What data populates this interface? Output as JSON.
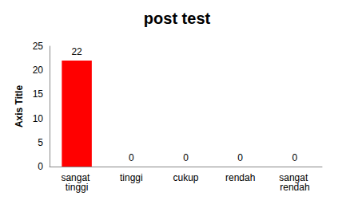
{
  "chart_data": {
    "type": "bar",
    "title": "post test",
    "y_label": "Axis Title",
    "categories": [
      "sangat tinggi",
      "tinggi",
      "cukup",
      "rendah",
      "sangat rendah"
    ],
    "values": [
      22,
      0,
      0,
      0,
      0
    ],
    "colors": [
      "#ff0000",
      "#3f3a6e",
      "#0e6b2e",
      "#2e6470",
      "#3e2f78"
    ],
    "ylim": [
      0,
      25
    ],
    "yticks": [
      0,
      5,
      10,
      15,
      20,
      25
    ],
    "grid": false,
    "data_labels": true
  }
}
